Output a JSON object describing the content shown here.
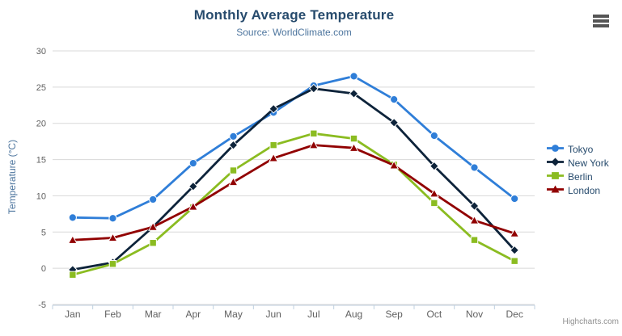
{
  "chart_data": {
    "type": "line",
    "title": "Monthly Average Temperature",
    "subtitle": "Source: WorldClimate.com",
    "categories": [
      "Jan",
      "Feb",
      "Mar",
      "Apr",
      "May",
      "Jun",
      "Jul",
      "Aug",
      "Sep",
      "Oct",
      "Nov",
      "Dec"
    ],
    "xlabel": "",
    "ylabel": "Temperature (°C)",
    "ylim": [
      -5,
      30
    ],
    "ytick_step": 5,
    "grid": true,
    "legend_position": "right",
    "series": [
      {
        "name": "Tokyo",
        "color": "#2f7ed8",
        "marker": "circle",
        "values": [
          7.0,
          6.9,
          9.5,
          14.5,
          18.2,
          21.5,
          25.2,
          26.5,
          23.3,
          18.3,
          13.9,
          9.6
        ]
      },
      {
        "name": "New York",
        "color": "#0d233a",
        "marker": "diamond",
        "values": [
          -0.2,
          0.8,
          5.7,
          11.3,
          17.0,
          22.0,
          24.8,
          24.1,
          20.1,
          14.1,
          8.6,
          2.5
        ]
      },
      {
        "name": "Berlin",
        "color": "#8bbc21",
        "marker": "square",
        "values": [
          -0.9,
          0.6,
          3.5,
          8.4,
          13.5,
          17.0,
          18.6,
          17.9,
          14.3,
          9.0,
          3.9,
          1.0
        ]
      },
      {
        "name": "London",
        "color": "#910000",
        "marker": "triangle",
        "values": [
          3.9,
          4.2,
          5.7,
          8.5,
          11.9,
          15.2,
          17.0,
          16.6,
          14.2,
          10.3,
          6.6,
          4.8
        ]
      }
    ],
    "credits": "Highcharts.com",
    "colors": {
      "title": "#274b6d",
      "subtitle": "#4d759e",
      "axis_title": "#4d759e",
      "tick_label": "#606060",
      "grid_line": "#d8d8d8",
      "axis_line": "#c0d0e0",
      "legend_text": "#274b6d",
      "credits_text": "#909090",
      "menu_icon": "#555555"
    }
  }
}
